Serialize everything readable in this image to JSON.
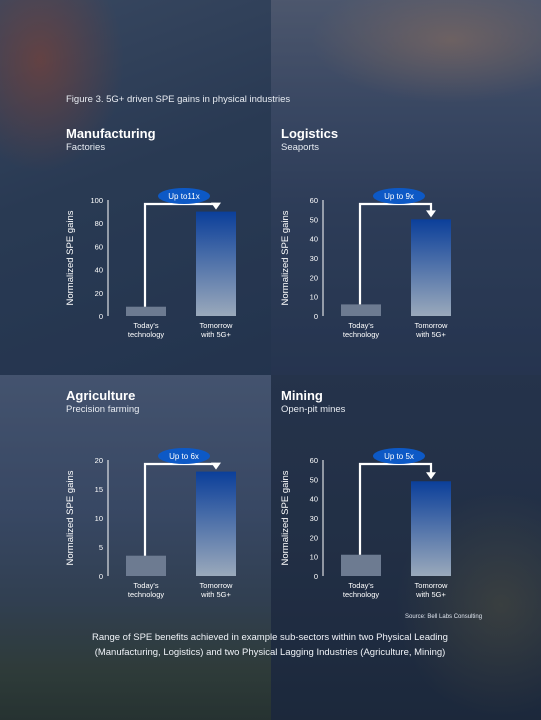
{
  "figure_title": "Figure 3. 5G+ driven SPE gains in physical industries",
  "source": "Source: Bell Labs Consulting",
  "caption": "Range of SPE benefits achieved in example sub-sectors within two Physical Leading (Manufacturing, Logistics) and two Physical Lagging Industries (Agriculture, Mining)",
  "colors": {
    "today_bar": "#6d7b91",
    "tomorrow_top": "#0b3f9a",
    "tomorrow_bottom": "#9aa9bb",
    "badge": "#0d59c6",
    "axis": "#ffffff"
  },
  "chart_data": [
    {
      "type": "bar",
      "title": "Manufacturing",
      "subtitle": "Factories",
      "ylabel": "Normalized SPE gains",
      "categories": [
        "Today's technology",
        "Tomorrow with 5G+"
      ],
      "category_lines": [
        [
          "Today's",
          "technology"
        ],
        [
          "Tomorrow",
          "with 5G+"
        ]
      ],
      "values": [
        8,
        90
      ],
      "ylim": [
        0,
        100
      ],
      "yticks": [
        0,
        20,
        40,
        60,
        80,
        100
      ],
      "annotation": "Up to11x"
    },
    {
      "type": "bar",
      "title": "Logistics",
      "subtitle": "Seaports",
      "ylabel": "Normalized SPE gains",
      "categories": [
        "Today's technology",
        "Tomorrow with 5G+"
      ],
      "category_lines": [
        [
          "Today's",
          "technology"
        ],
        [
          "Tomorrow",
          "with 5G+"
        ]
      ],
      "values": [
        6,
        50
      ],
      "ylim": [
        0,
        60
      ],
      "yticks": [
        0,
        10,
        20,
        30,
        40,
        50,
        60
      ],
      "annotation": "Up to 9x"
    },
    {
      "type": "bar",
      "title": "Agriculture",
      "subtitle": "Precision farming",
      "ylabel": "Normalized SPE gains",
      "categories": [
        "Today's technology",
        "Tomorrow with 5G+"
      ],
      "category_lines": [
        [
          "Today's",
          "technology"
        ],
        [
          "Tomorrow",
          "with 5G+"
        ]
      ],
      "values": [
        3.5,
        18
      ],
      "ylim": [
        0,
        20
      ],
      "yticks": [
        0,
        5,
        10,
        15,
        20
      ],
      "annotation": "Up to 6x"
    },
    {
      "type": "bar",
      "title": "Mining",
      "subtitle": "Open-pit mines",
      "ylabel": "Normalized SPE gains",
      "categories": [
        "Today's technology",
        "Tomorrow with 5G+"
      ],
      "category_lines": [
        [
          "Today's",
          "technology"
        ],
        [
          "Tomorrow",
          "with 5G+"
        ]
      ],
      "values": [
        11,
        49
      ],
      "ylim": [
        0,
        60
      ],
      "yticks": [
        0,
        10,
        20,
        30,
        40,
        50,
        60
      ],
      "annotation": "Up to 5x"
    }
  ]
}
